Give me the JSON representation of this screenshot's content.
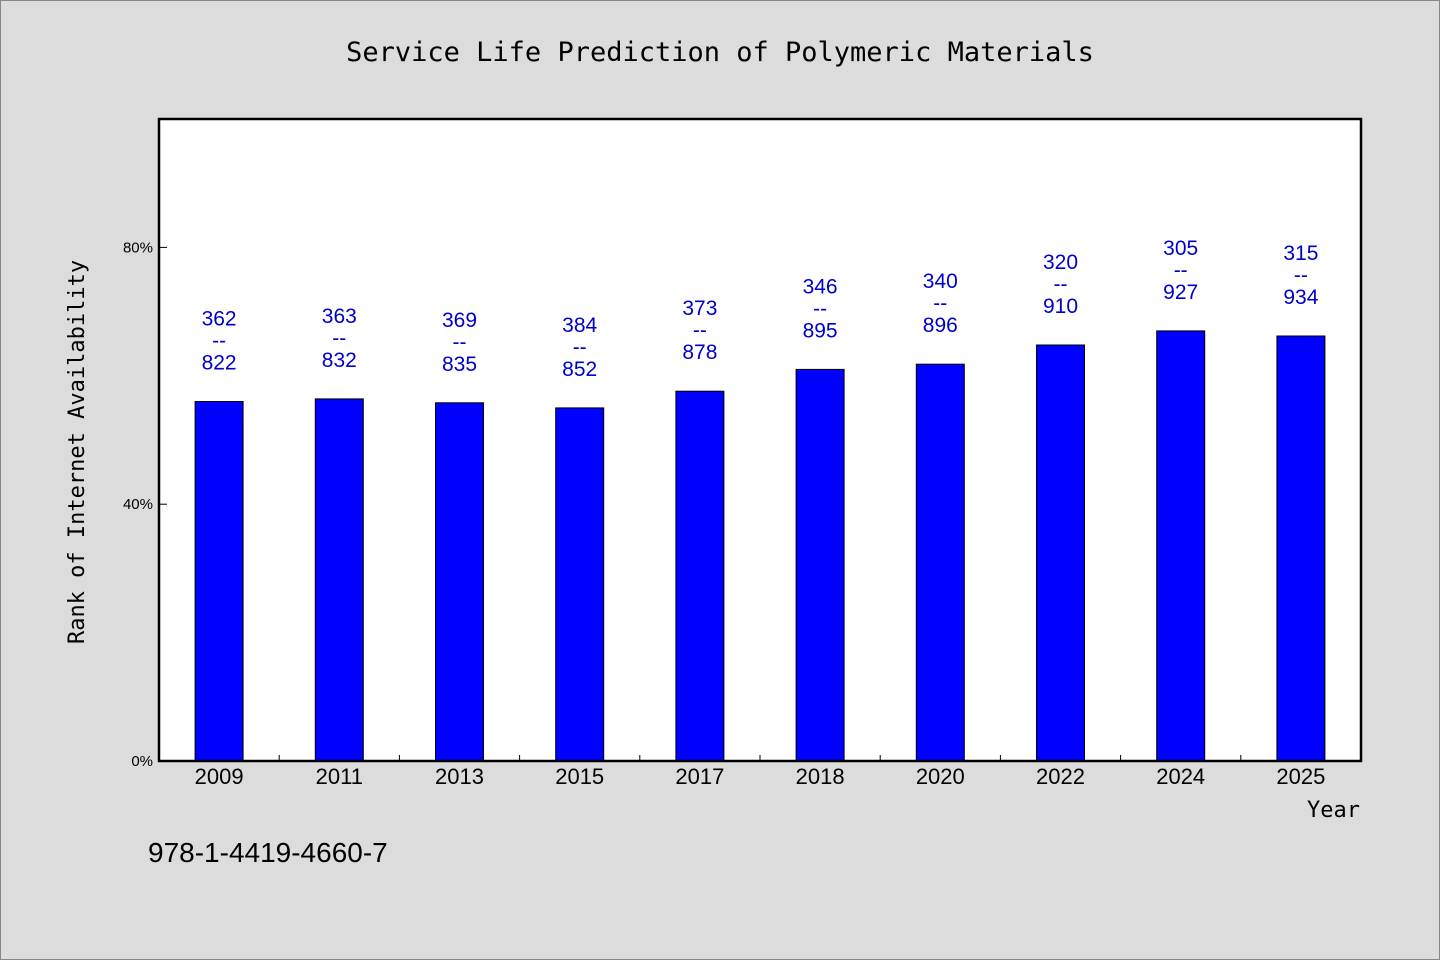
{
  "chart_data": {
    "type": "bar",
    "title": "Service Life Prediction of Polymeric Materials",
    "xlabel": "Year",
    "ylabel": "Rank of Internet Availability",
    "categories": [
      "2009",
      "2011",
      "2013",
      "2015",
      "2017",
      "2018",
      "2020",
      "2022",
      "2024",
      "2025"
    ],
    "series": [
      {
        "values": [
          56.0,
          56.4,
          55.8,
          55.0,
          57.6,
          61.0,
          61.8,
          64.8,
          67.0,
          66.2
        ],
        "color": "#0000ff"
      }
    ],
    "data_labels": [
      [
        "362",
        "--",
        "822"
      ],
      [
        "363",
        "--",
        "832"
      ],
      [
        "369",
        "--",
        "835"
      ],
      [
        "384",
        "--",
        "852"
      ],
      [
        "373",
        "--",
        "878"
      ],
      [
        "346",
        "--",
        "895"
      ],
      [
        "340",
        "--",
        "896"
      ],
      [
        "320",
        "--",
        "910"
      ],
      [
        "305",
        "--",
        "927"
      ],
      [
        "315",
        "--",
        "934"
      ]
    ],
    "yticks": [
      {
        "value": 0,
        "label": "0%"
      },
      {
        "value": 40,
        "label": "40%"
      },
      {
        "value": 80,
        "label": "80%"
      }
    ],
    "ylim": [
      0,
      100
    ],
    "grid": false,
    "legend": "none"
  },
  "footer": {
    "isbn": "978-1-4419-4660-7"
  },
  "colors": {
    "background": "#dcdcdc",
    "plot_bg": "#ffffff",
    "bar": "#0000ff",
    "data_label": "#0000cc"
  }
}
